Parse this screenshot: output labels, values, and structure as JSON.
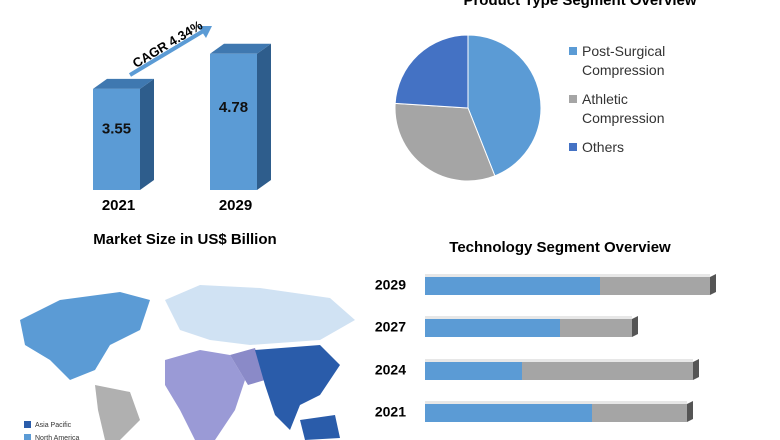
{
  "chart_data": [
    {
      "type": "bar",
      "title": "Market Size in US$ Billion",
      "categories": [
        "2021",
        "2029"
      ],
      "values": [
        3.55,
        4.78
      ],
      "annotation": "CAGR 4.34%",
      "color": "#5b9bd5"
    },
    {
      "type": "pie",
      "title": "Product Type  Segment Overview",
      "categories": [
        "Post-Surgical Compression",
        "Athletic Compression",
        "Others"
      ],
      "values": [
        44,
        32,
        24
      ],
      "colors": [
        "#5b9bd5",
        "#a5a5a5",
        "#4472c4"
      ]
    },
    {
      "type": "bar",
      "orientation": "horizontal",
      "title": "Technology Segment Overview",
      "categories": [
        "2029",
        "2027",
        "2024",
        "2021"
      ],
      "series": [
        {
          "color": "#5b9bd5",
          "values": [
            175,
            135,
            97,
            167
          ]
        },
        {
          "color": "#a5a5a5",
          "values": [
            110,
            72,
            171,
            95
          ]
        }
      ]
    }
  ],
  "map_legend": {
    "items": [
      "Asia Pacific",
      "North America"
    ],
    "colors": [
      "#2a5caa",
      "#5b9bd5"
    ]
  }
}
